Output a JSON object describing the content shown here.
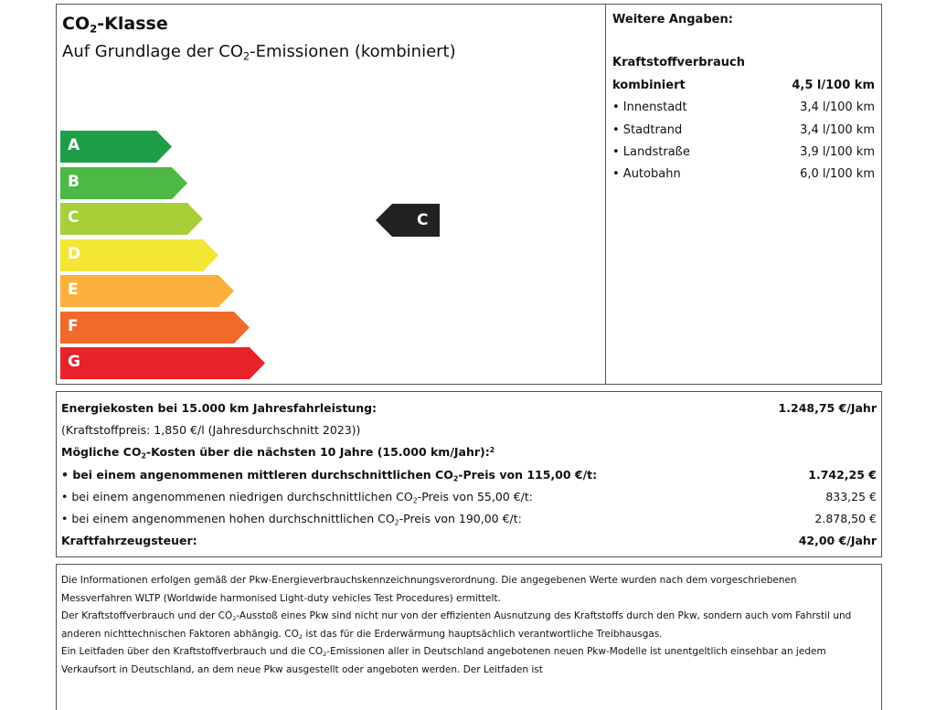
{
  "top_left": {
    "title": {
      "pre": "CO",
      "sub": "2",
      "post": "-Klasse"
    },
    "subtitle": {
      "pre": "Auf Grundlage der CO",
      "sub": "2",
      "post": "-Emissionen (kombiniert)"
    },
    "classes": [
      {
        "label": "A",
        "color": "#1f9e48"
      },
      {
        "label": "B",
        "color": "#4db846"
      },
      {
        "label": "C",
        "color": "#a6cf38"
      },
      {
        "label": "D",
        "color": "#f4e634"
      },
      {
        "label": "E",
        "color": "#fbb03b"
      },
      {
        "label": "F",
        "color": "#f26a2b"
      },
      {
        "label": "G",
        "color": "#e8222a"
      }
    ],
    "current_class": {
      "label": "C",
      "color": "#222222"
    }
  },
  "top_right": {
    "heading": "Weitere Angaben:",
    "subheading": "Kraftstoffverbrauch",
    "rows": [
      {
        "label": "kombiniert",
        "value": "4,5 l/100 km",
        "bold": true
      },
      {
        "label": "• Innenstadt",
        "value": "3,4 l/100 km",
        "bold": false
      },
      {
        "label": "• Stadtrand",
        "value": "3,4 l/100 km",
        "bold": false
      },
      {
        "label": "• Landstraße",
        "value": "3,9 l/100 km",
        "bold": false
      },
      {
        "label": "• Autobahn",
        "value": "6,0 l/100 km",
        "bold": false
      }
    ]
  },
  "costs": {
    "energy_label": "Energiekosten bei 15.000 km Jahresfahrleistung:",
    "energy_value": "1.248,75 €/Jahr",
    "fuel_price": "(Kraftstoffpreis: 1,850 €/l (Jahresdurchschnitt 2023))",
    "co2_costs": {
      "pre": "Mögliche CO",
      "sub": "2",
      "post": "-Kosten über die nächsten 10 Jahre (15.000 km/Jahr):",
      "sup": "2"
    },
    "scenarios": [
      {
        "pre": "• bei einem angenommenen mittleren durchschnittlichen CO",
        "sub": "2",
        "post": "-Preis von 115,00 €/t:",
        "value": "1.742,25 €",
        "bold": true
      },
      {
        "pre": "• bei einem angenommenen niedrigen durchschnittlichen CO",
        "sub": "2",
        "post": "-Preis von 55,00 €/t:",
        "value": "833,25 €",
        "bold": false
      },
      {
        "pre": "• bei einem angenommenen hohen durchschnittlichen CO",
        "sub": "2",
        "post": "-Preis von 190,00 €/t:",
        "value": "2.878,50 €",
        "bold": false
      }
    ],
    "tax_label": "Kraftfahrzeugsteuer:",
    "tax_value": "42,00 €/Jahr"
  },
  "footnote": {
    "p1": "Die Informationen erfolgen gemäß der Pkw-Energieverbrauchskennzeichnungsverordnung. Die angegebenen Werte wurden nach dem vorgeschriebenen Messverfahren WLTP (Worldwide harmonised Light-duty vehicles Test Procedures) ermittelt.",
    "p2": {
      "a": "Der Kraftstoffverbrauch und der CO",
      "b": "-Ausstoß eines Pkw sind nicht nur von der effizienten Ausnutzung des Kraftstoffs durch den Pkw, sondern auch vom Fahrstil und anderen nichttechnischen Faktoren abhängig. CO",
      "c": " ist das für die Erderwärmung hauptsächlich verantwortliche Treibhausgas."
    },
    "p3": {
      "a": "Ein Leitfaden über den Kraftstoffverbrauch und die CO",
      "b": "-Emissionen aller in Deutschland angebotenen neuen Pkw-Modelle ist unentgeltlich einsehbar an jedem Verkaufsort in Deutschland, an dem neue Pkw ausgestellt oder angeboten werden. Der Leitfaden ist"
    },
    "sub": "2"
  }
}
